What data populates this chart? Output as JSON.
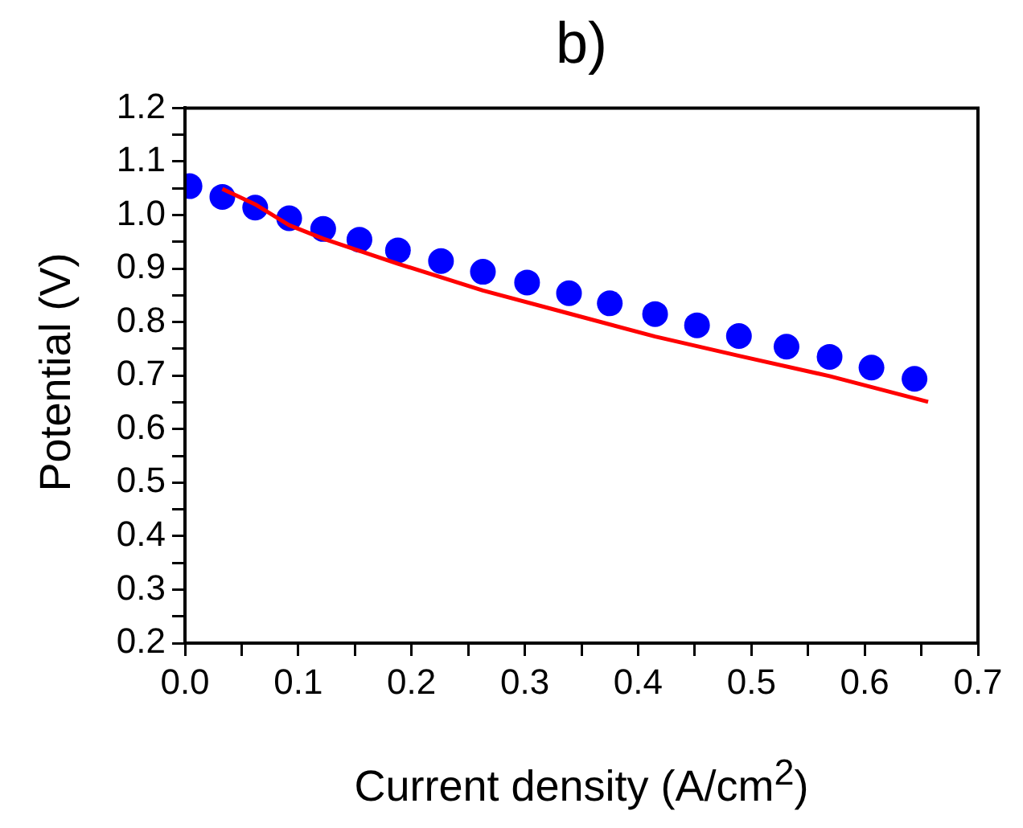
{
  "chart_data": {
    "type": "scatter",
    "title": "b)",
    "xlabel": "Current density (A/cm$^{2}$)",
    "ylabel": "Potential (V)",
    "xlim": [
      0,
      0.7
    ],
    "ylim": [
      0.2,
      1.2
    ],
    "xticks": [
      {
        "value": 0,
        "label": "0.0"
      },
      {
        "value": 0.05,
        "label": null
      },
      0.1,
      {
        "value": 0.15,
        "label": null
      },
      0.2,
      {
        "value": 0.25,
        "label": null
      },
      0.3,
      {
        "value": 0.35,
        "label": null
      },
      0.4,
      {
        "value": 0.45,
        "label": null
      },
      0.5,
      {
        "value": 0.55,
        "label": null
      },
      0.6,
      {
        "value": 0.65,
        "label": null
      },
      0.7
    ],
    "yticks": [
      0.2,
      {
        "value": 0.25,
        "label": null
      },
      0.3,
      {
        "value": 0.35,
        "label": null
      },
      0.4,
      {
        "value": 0.45,
        "label": null
      },
      0.5,
      {
        "value": 0.55,
        "label": null
      },
      0.6,
      {
        "value": 0.65,
        "label": null
      },
      0.7,
      {
        "value": 0.75,
        "label": null
      },
      0.8,
      {
        "value": 0.85,
        "label": null
      },
      0.9,
      {
        "value": 0.95,
        "label": null
      },
      {
        "value": 1,
        "label": "1.0"
      },
      {
        "value": 1.05,
        "label": null
      },
      1.1,
      {
        "value": 1.15,
        "label": null
      },
      1.2
    ],
    "grid": false,
    "legend": false,
    "series": [
      {
        "color": "#0000ff",
        "marker": "circle",
        "x": [
          0.004,
          0.033,
          0.062,
          0.092,
          0.122,
          0.154,
          0.188,
          0.226,
          0.263,
          0.302,
          0.339,
          0.375,
          0.415,
          0.452,
          0.489,
          0.531,
          0.569,
          0.606,
          0.644
        ],
        "values": [
          1.054,
          1.034,
          1.014,
          0.994,
          0.974,
          0.954,
          0.934,
          0.914,
          0.894,
          0.874,
          0.854,
          0.835,
          0.815,
          0.794,
          0.774,
          0.754,
          0.735,
          0.715,
          0.694
        ]
      },
      {
        "type": "line",
        "color": "#ff0000",
        "marker": "none",
        "line_style": "solid",
        "x": [
          0.033,
          0.062,
          0.092,
          0.122,
          0.188,
          0.263,
          0.339,
          0.415,
          0.489,
          0.569,
          0.656
        ],
        "values": [
          1.049,
          1.02,
          0.981,
          0.956,
          0.909,
          0.859,
          0.816,
          0.773,
          0.737,
          0.699,
          0.651
        ]
      }
    ]
  }
}
